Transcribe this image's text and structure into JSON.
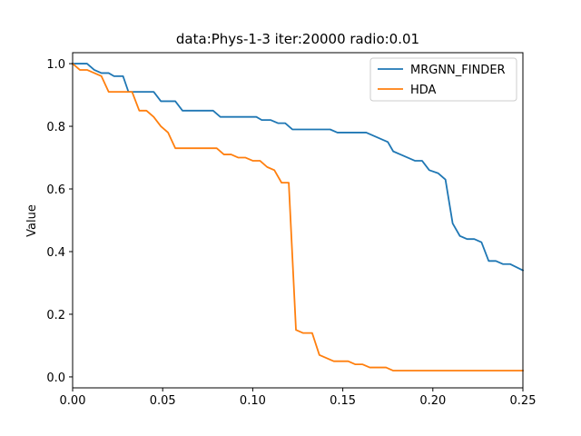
{
  "chart_data": {
    "type": "line",
    "title": "data:Phys-1-3 iter:20000 radio:0.01",
    "xlabel": "",
    "ylabel": "Value",
    "xlim": [
      0,
      0.25
    ],
    "ylim": [
      -0.035,
      1.035
    ],
    "x_ticks": [
      "0.00",
      "0.05",
      "0.10",
      "0.15",
      "0.20",
      "0.25"
    ],
    "y_ticks": [
      "0.0",
      "0.2",
      "0.4",
      "0.6",
      "0.8",
      "1.0"
    ],
    "grid": false,
    "legend_position": "top-right",
    "series": [
      {
        "name": "MRGNN_FINDER",
        "color": "#1f77b4",
        "points": [
          [
            0.0,
            1.0
          ],
          [
            0.008,
            1.0
          ],
          [
            0.012,
            0.98
          ],
          [
            0.016,
            0.97
          ],
          [
            0.02,
            0.97
          ],
          [
            0.023,
            0.96
          ],
          [
            0.028,
            0.96
          ],
          [
            0.031,
            0.91
          ],
          [
            0.045,
            0.91
          ],
          [
            0.049,
            0.88
          ],
          [
            0.057,
            0.88
          ],
          [
            0.061,
            0.85
          ],
          [
            0.078,
            0.85
          ],
          [
            0.082,
            0.83
          ],
          [
            0.102,
            0.83
          ],
          [
            0.105,
            0.82
          ],
          [
            0.11,
            0.82
          ],
          [
            0.114,
            0.81
          ],
          [
            0.118,
            0.81
          ],
          [
            0.122,
            0.79
          ],
          [
            0.143,
            0.79
          ],
          [
            0.147,
            0.78
          ],
          [
            0.163,
            0.78
          ],
          [
            0.175,
            0.75
          ],
          [
            0.178,
            0.72
          ],
          [
            0.182,
            0.71
          ],
          [
            0.19,
            0.69
          ],
          [
            0.194,
            0.69
          ],
          [
            0.198,
            0.66
          ],
          [
            0.203,
            0.65
          ],
          [
            0.207,
            0.63
          ],
          [
            0.211,
            0.49
          ],
          [
            0.215,
            0.45
          ],
          [
            0.219,
            0.44
          ],
          [
            0.223,
            0.44
          ],
          [
            0.227,
            0.43
          ],
          [
            0.231,
            0.37
          ],
          [
            0.235,
            0.37
          ],
          [
            0.239,
            0.36
          ],
          [
            0.243,
            0.36
          ],
          [
            0.25,
            0.34
          ]
        ]
      },
      {
        "name": "HDA",
        "color": "#ff7f0e",
        "points": [
          [
            0.0,
            1.0
          ],
          [
            0.004,
            0.98
          ],
          [
            0.008,
            0.98
          ],
          [
            0.016,
            0.96
          ],
          [
            0.02,
            0.91
          ],
          [
            0.033,
            0.91
          ],
          [
            0.037,
            0.85
          ],
          [
            0.041,
            0.85
          ],
          [
            0.045,
            0.83
          ],
          [
            0.049,
            0.8
          ],
          [
            0.053,
            0.78
          ],
          [
            0.057,
            0.73
          ],
          [
            0.08,
            0.73
          ],
          [
            0.084,
            0.71
          ],
          [
            0.088,
            0.71
          ],
          [
            0.092,
            0.7
          ],
          [
            0.096,
            0.7
          ],
          [
            0.1,
            0.69
          ],
          [
            0.104,
            0.69
          ],
          [
            0.108,
            0.67
          ],
          [
            0.112,
            0.66
          ],
          [
            0.116,
            0.62
          ],
          [
            0.12,
            0.62
          ],
          [
            0.124,
            0.15
          ],
          [
            0.128,
            0.14
          ],
          [
            0.133,
            0.14
          ],
          [
            0.137,
            0.07
          ],
          [
            0.145,
            0.05
          ],
          [
            0.153,
            0.05
          ],
          [
            0.157,
            0.04
          ],
          [
            0.161,
            0.04
          ],
          [
            0.165,
            0.03
          ],
          [
            0.174,
            0.03
          ],
          [
            0.178,
            0.02
          ],
          [
            0.25,
            0.02
          ]
        ]
      }
    ]
  }
}
